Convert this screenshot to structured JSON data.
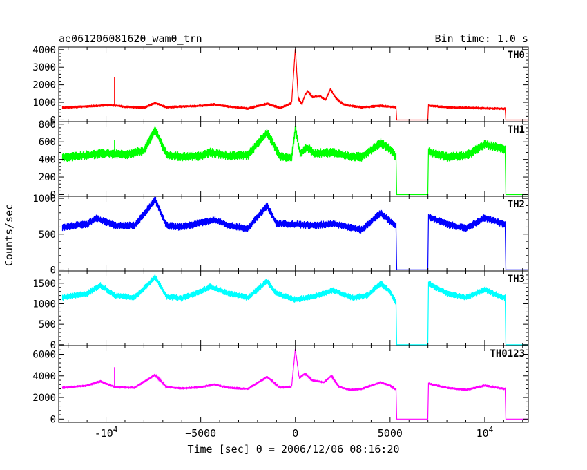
{
  "chart_data": {
    "type": "line",
    "title_left": "ae061206081620_wam0_trn",
    "title_right": "Bin time: 1.0 s",
    "xlabel": "Time [sec] 0 = 2006/12/06 08:16:20",
    "ylabel": "Counts/sec",
    "xlim": [
      -12500,
      12300
    ],
    "x_ticks": [
      {
        "value": -10000,
        "label": "-10",
        "exp": "4"
      },
      {
        "value": -5000,
        "label": "−5000",
        "exp": ""
      },
      {
        "value": 0,
        "label": "0",
        "exp": ""
      },
      {
        "value": 5000,
        "label": "5000",
        "exp": ""
      },
      {
        "value": 10000,
        "label": "10",
        "exp": "4"
      }
    ],
    "gaps": [
      [
        5350,
        7000
      ],
      [
        11100,
        12300
      ]
    ],
    "panels": [
      {
        "name": "TH0",
        "color": "#ff0000",
        "ylim": [
          -100,
          4150
        ],
        "noise": 80,
        "yticks": [
          0,
          1000,
          2000,
          3000,
          4000
        ],
        "points": [
          [
            -12300,
            700
          ],
          [
            -11000,
            770
          ],
          [
            -10000,
            840
          ],
          [
            -9500,
            820
          ],
          [
            -9000,
            750
          ],
          [
            -8000,
            700
          ],
          [
            -7400,
            960
          ],
          [
            -6800,
            720
          ],
          [
            -6000,
            760
          ],
          [
            -5000,
            800
          ],
          [
            -4300,
            880
          ],
          [
            -3500,
            750
          ],
          [
            -2500,
            650
          ],
          [
            -1500,
            920
          ],
          [
            -800,
            680
          ],
          [
            -200,
            950
          ],
          [
            0,
            4100
          ],
          [
            150,
            1200
          ],
          [
            350,
            900
          ],
          [
            500,
            1400
          ],
          [
            650,
            1650
          ],
          [
            900,
            1300
          ],
          [
            1300,
            1350
          ],
          [
            1600,
            1150
          ],
          [
            1850,
            1750
          ],
          [
            2100,
            1300
          ],
          [
            2500,
            900
          ],
          [
            2900,
            800
          ],
          [
            3500,
            720
          ],
          [
            4500,
            800
          ],
          [
            5000,
            760
          ],
          [
            5340,
            720
          ],
          [
            7000,
            820
          ],
          [
            8000,
            720
          ],
          [
            9000,
            690
          ],
          [
            10000,
            660
          ],
          [
            11000,
            640
          ]
        ],
        "spikes": [
          [
            -9550,
            2450
          ]
        ]
      },
      {
        "name": "TH1",
        "color": "#00ff00",
        "ylim": [
          -20,
          830
        ],
        "noise": 55,
        "yticks": [
          0,
          200,
          400,
          600,
          800
        ],
        "points": [
          [
            -12300,
            420
          ],
          [
            -11000,
            450
          ],
          [
            -10000,
            470
          ],
          [
            -9000,
            450
          ],
          [
            -8000,
            500
          ],
          [
            -7400,
            740
          ],
          [
            -6800,
            450
          ],
          [
            -6000,
            430
          ],
          [
            -5000,
            440
          ],
          [
            -4500,
            480
          ],
          [
            -3500,
            440
          ],
          [
            -2500,
            450
          ],
          [
            -1500,
            710
          ],
          [
            -800,
            430
          ],
          [
            -200,
            420
          ],
          [
            0,
            760
          ],
          [
            250,
            460
          ],
          [
            600,
            540
          ],
          [
            1000,
            470
          ],
          [
            2000,
            480
          ],
          [
            2900,
            430
          ],
          [
            3500,
            430
          ],
          [
            4500,
            590
          ],
          [
            5000,
            520
          ],
          [
            5340,
            420
          ],
          [
            7000,
            490
          ],
          [
            8000,
            430
          ],
          [
            9000,
            440
          ],
          [
            10000,
            570
          ],
          [
            11000,
            520
          ]
        ],
        "spikes": [
          [
            -9550,
            620
          ]
        ]
      },
      {
        "name": "TH2",
        "color": "#0000ff",
        "ylim": [
          -15,
          1030
        ],
        "noise": 55,
        "yticks": [
          0,
          500,
          1000
        ],
        "points": [
          [
            -12300,
            600
          ],
          [
            -11000,
            640
          ],
          [
            -10500,
            720
          ],
          [
            -9500,
            620
          ],
          [
            -8500,
            620
          ],
          [
            -7400,
            980
          ],
          [
            -6800,
            620
          ],
          [
            -6000,
            600
          ],
          [
            -5000,
            660
          ],
          [
            -4300,
            700
          ],
          [
            -3500,
            620
          ],
          [
            -2500,
            580
          ],
          [
            -1500,
            900
          ],
          [
            -1000,
            650
          ],
          [
            0,
            640
          ],
          [
            1000,
            620
          ],
          [
            2000,
            650
          ],
          [
            3500,
            560
          ],
          [
            4500,
            800
          ],
          [
            5000,
            680
          ],
          [
            5340,
            600
          ],
          [
            7000,
            750
          ],
          [
            8000,
            640
          ],
          [
            9000,
            580
          ],
          [
            10000,
            730
          ],
          [
            11000,
            640
          ]
        ],
        "spikes": []
      },
      {
        "name": "TH3",
        "color": "#00ffff",
        "ylim": [
          -20,
          1800
        ],
        "noise": 80,
        "yticks": [
          0,
          500,
          1000,
          1500
        ],
        "points": [
          [
            -12300,
            1150
          ],
          [
            -11000,
            1250
          ],
          [
            -10300,
            1450
          ],
          [
            -9500,
            1200
          ],
          [
            -8500,
            1150
          ],
          [
            -7400,
            1650
          ],
          [
            -6800,
            1180
          ],
          [
            -6000,
            1130
          ],
          [
            -5000,
            1300
          ],
          [
            -4500,
            1420
          ],
          [
            -3500,
            1250
          ],
          [
            -2500,
            1150
          ],
          [
            -1500,
            1550
          ],
          [
            -1000,
            1250
          ],
          [
            0,
            1100
          ],
          [
            1000,
            1180
          ],
          [
            2000,
            1330
          ],
          [
            3000,
            1150
          ],
          [
            3800,
            1200
          ],
          [
            4500,
            1500
          ],
          [
            5000,
            1300
          ],
          [
            5340,
            1000
          ],
          [
            7000,
            1500
          ],
          [
            8000,
            1250
          ],
          [
            9000,
            1150
          ],
          [
            10000,
            1350
          ],
          [
            11000,
            1150
          ]
        ],
        "spikes": []
      },
      {
        "name": "TH0123",
        "color": "#ff00ff",
        "ylim": [
          -300,
          6800
        ],
        "noise": 120,
        "yticks": [
          0,
          2000,
          4000,
          6000
        ],
        "points": [
          [
            -12300,
            2900
          ],
          [
            -11000,
            3100
          ],
          [
            -10300,
            3500
          ],
          [
            -9500,
            2950
          ],
          [
            -8500,
            2900
          ],
          [
            -7400,
            4100
          ],
          [
            -6800,
            2950
          ],
          [
            -6000,
            2850
          ],
          [
            -5000,
            2950
          ],
          [
            -4300,
            3200
          ],
          [
            -3500,
            2900
          ],
          [
            -2500,
            2800
          ],
          [
            -1500,
            3900
          ],
          [
            -800,
            2900
          ],
          [
            -200,
            3000
          ],
          [
            0,
            6500
          ],
          [
            200,
            3800
          ],
          [
            500,
            4200
          ],
          [
            900,
            3600
          ],
          [
            1500,
            3400
          ],
          [
            1900,
            4000
          ],
          [
            2300,
            3000
          ],
          [
            2900,
            2700
          ],
          [
            3500,
            2800
          ],
          [
            4500,
            3400
          ],
          [
            5000,
            3100
          ],
          [
            5340,
            2700
          ],
          [
            7000,
            3300
          ],
          [
            8000,
            2900
          ],
          [
            9000,
            2700
          ],
          [
            10000,
            3100
          ],
          [
            11000,
            2800
          ]
        ],
        "spikes": [
          [
            -9550,
            4800
          ]
        ]
      }
    ]
  }
}
